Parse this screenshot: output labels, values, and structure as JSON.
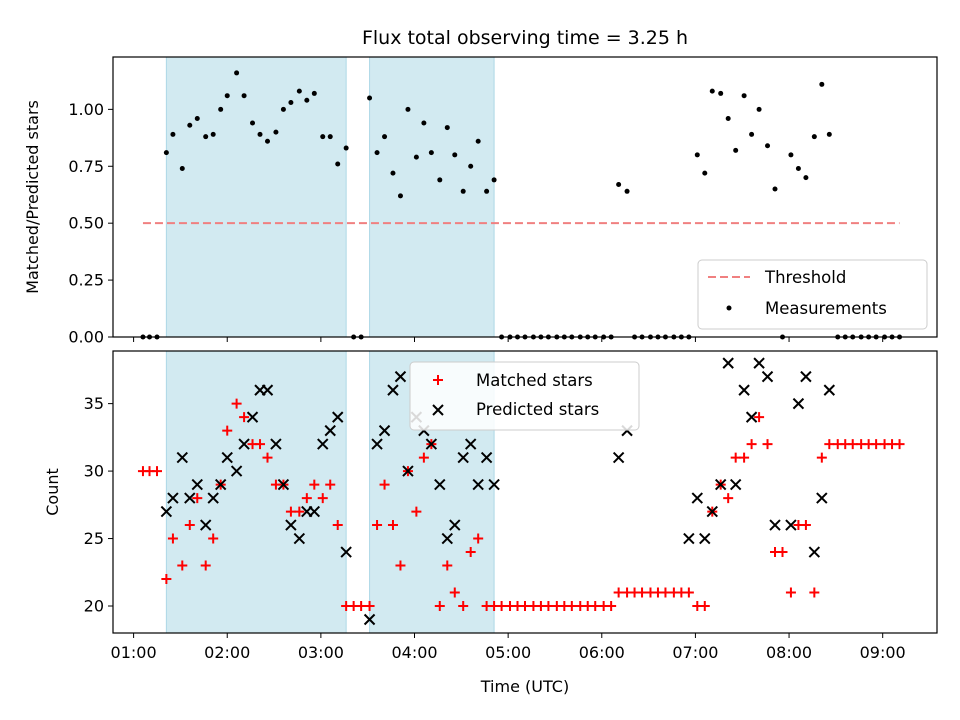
{
  "chart_data": {
    "title": "Flux total observing time = 3.25 h",
    "xlabel": "Time (UTC)",
    "x_ticks": [
      "01:00",
      "02:00",
      "03:00",
      "04:00",
      "05:00",
      "06:00",
      "07:00",
      "08:00",
      "09:00"
    ],
    "xlim_hours": [
      0.78,
      9.58
    ],
    "shaded_intervals_hours": [
      [
        1.35,
        3.27
      ],
      [
        3.52,
        4.85
      ]
    ],
    "shade_color": "#add8e6",
    "top": {
      "type": "scatter",
      "ylabel": "Matched/Predicted stars",
      "ylim": [
        0.0,
        1.23
      ],
      "y_ticks": [
        "0.00",
        "0.25",
        "0.50",
        "0.75",
        "1.00"
      ],
      "threshold": {
        "name": "Threshold",
        "value": 0.5,
        "x_range": [
          1.1,
          9.18
        ],
        "color": "#f08080"
      },
      "legend": {
        "position": "lower right",
        "entries": [
          "Threshold",
          "Measurements"
        ]
      },
      "measurements": {
        "name": "Measurements",
        "color": "#000000",
        "x": [
          1.1,
          1.17,
          1.25,
          1.35,
          1.42,
          1.52,
          1.6,
          1.68,
          1.77,
          1.85,
          1.93,
          2.0,
          2.1,
          2.18,
          2.27,
          2.35,
          2.43,
          2.52,
          2.6,
          2.68,
          2.77,
          2.85,
          2.93,
          3.02,
          3.1,
          3.18,
          3.27,
          3.35,
          3.43,
          3.52,
          3.6,
          3.68,
          3.77,
          3.85,
          3.93,
          4.02,
          4.1,
          4.18,
          4.27,
          4.35,
          4.43,
          4.52,
          4.6,
          4.68,
          4.77,
          4.85,
          4.93,
          5.02,
          5.1,
          5.18,
          5.27,
          5.35,
          5.43,
          5.52,
          5.6,
          5.68,
          5.77,
          5.85,
          5.93,
          6.02,
          6.1,
          6.18,
          6.27,
          6.35,
          6.43,
          6.52,
          6.6,
          6.68,
          6.77,
          6.85,
          6.93,
          7.02,
          7.1,
          7.18,
          7.27,
          7.35,
          7.43,
          7.52,
          7.6,
          7.68,
          7.77,
          7.85,
          7.93,
          8.02,
          8.1,
          8.18,
          8.27,
          8.35,
          8.43,
          8.52,
          8.6,
          8.68,
          8.77,
          8.85,
          8.93,
          9.02,
          9.1,
          9.18
        ],
        "y": [
          0,
          0,
          0,
          0.81,
          0.89,
          0.74,
          0.93,
          0.96,
          0.88,
          0.89,
          1.0,
          1.06,
          1.16,
          1.06,
          0.94,
          0.89,
          0.86,
          0.9,
          1.0,
          1.03,
          1.08,
          1.04,
          1.07,
          0.88,
          0.88,
          0.76,
          0.83,
          0,
          0,
          1.05,
          0.81,
          0.88,
          0.72,
          0.62,
          1.0,
          0.79,
          0.94,
          0.81,
          0.69,
          0.92,
          0.8,
          0.64,
          0.75,
          0.86,
          0.64,
          0.69,
          0,
          0,
          0,
          0,
          0,
          0,
          0,
          0,
          0,
          0,
          0,
          0,
          0,
          0,
          0,
          0.67,
          0.64,
          0,
          0,
          0,
          0,
          0,
          0,
          0,
          0,
          0.8,
          0.72,
          1.08,
          1.07,
          0.96,
          0.82,
          1.06,
          0.89,
          1.0,
          0.84,
          0.65,
          0,
          0.8,
          0.74,
          0.7,
          0.88,
          1.11,
          0.89,
          0,
          0,
          0,
          0,
          0,
          0,
          0,
          0,
          0
        ]
      }
    },
    "bottom": {
      "type": "scatter",
      "ylabel": "Count",
      "ylim": [
        18,
        38.9
      ],
      "y_ticks": [
        "20",
        "25",
        "30",
        "35"
      ],
      "legend": {
        "position": "upper center",
        "entries": [
          "Matched stars",
          "Predicted stars"
        ]
      },
      "series": [
        {
          "name": "Matched stars",
          "marker": "plus",
          "color": "#ff0000",
          "x": [
            1.1,
            1.17,
            1.25,
            1.35,
            1.42,
            1.52,
            1.6,
            1.68,
            1.77,
            1.85,
            1.93,
            2.0,
            2.1,
            2.18,
            2.27,
            2.35,
            2.43,
            2.52,
            2.6,
            2.68,
            2.77,
            2.85,
            2.93,
            3.02,
            3.1,
            3.18,
            3.27,
            3.35,
            3.43,
            3.52,
            3.6,
            3.68,
            3.77,
            3.85,
            3.93,
            4.02,
            4.1,
            4.18,
            4.27,
            4.35,
            4.43,
            4.52,
            4.6,
            4.68,
            4.77,
            4.85,
            4.93,
            5.02,
            5.1,
            5.18,
            5.27,
            5.35,
            5.43,
            5.52,
            5.6,
            5.68,
            5.77,
            5.85,
            5.93,
            6.02,
            6.1,
            6.18,
            6.27,
            6.35,
            6.43,
            6.52,
            6.6,
            6.68,
            6.77,
            6.85,
            6.93,
            7.02,
            7.1,
            7.18,
            7.27,
            7.35,
            7.43,
            7.52,
            7.6,
            7.68,
            7.77,
            7.85,
            7.93,
            8.02,
            8.1,
            8.18,
            8.27,
            8.35,
            8.43,
            8.52,
            8.6,
            8.68,
            8.77,
            8.85,
            8.93,
            9.02,
            9.1,
            9.18
          ],
          "y": [
            30,
            30,
            30,
            22,
            25,
            23,
            26,
            28,
            23,
            25,
            29,
            33,
            35,
            34,
            32,
            32,
            31,
            29,
            29,
            27,
            27,
            28,
            29,
            28,
            29,
            26,
            20,
            20,
            20,
            20,
            26,
            29,
            26,
            23,
            30,
            27,
            31,
            32,
            20,
            23,
            21,
            20,
            24,
            25,
            20,
            20,
            20,
            20,
            20,
            20,
            20,
            20,
            20,
            20,
            20,
            20,
            20,
            20,
            20,
            20,
            20,
            21,
            21,
            21,
            21,
            21,
            21,
            21,
            21,
            21,
            21,
            20,
            20,
            27,
            29,
            28,
            31,
            31,
            32,
            34,
            32,
            24,
            24,
            21,
            26,
            26,
            21,
            31,
            32,
            32,
            32,
            32,
            32,
            32,
            32,
            32,
            32,
            32
          ]
        },
        {
          "name": "Predicted stars",
          "marker": "x",
          "color": "#000000",
          "x": [
            1.35,
            1.42,
            1.52,
            1.6,
            1.68,
            1.77,
            1.85,
            1.93,
            2.0,
            2.1,
            2.18,
            2.27,
            2.35,
            2.43,
            2.52,
            2.6,
            2.68,
            2.77,
            2.85,
            2.93,
            3.02,
            3.1,
            3.18,
            3.27,
            3.52,
            3.6,
            3.68,
            3.77,
            3.85,
            3.93,
            4.02,
            4.1,
            4.18,
            4.27,
            4.35,
            4.43,
            4.52,
            4.6,
            4.68,
            4.77,
            4.85,
            6.18,
            6.27,
            6.93,
            7.02,
            7.1,
            7.18,
            7.27,
            7.35,
            7.43,
            7.52,
            7.6,
            7.68,
            7.77,
            7.85,
            8.02,
            8.1,
            8.18,
            8.27,
            8.35,
            8.43
          ],
          "y": [
            27,
            28,
            31,
            28,
            29,
            26,
            28,
            29,
            31,
            30,
            32,
            34,
            36,
            36,
            32,
            29,
            26,
            25,
            27,
            27,
            32,
            33,
            34,
            24,
            19,
            32,
            33,
            36,
            37,
            30,
            34,
            33,
            32,
            29,
            25,
            26,
            31,
            32,
            29,
            31,
            29,
            31,
            33,
            25,
            28,
            25,
            27,
            29,
            38,
            29,
            36,
            34,
            38,
            37,
            26,
            26,
            35,
            37,
            24,
            28,
            36
          ]
        }
      ]
    }
  }
}
